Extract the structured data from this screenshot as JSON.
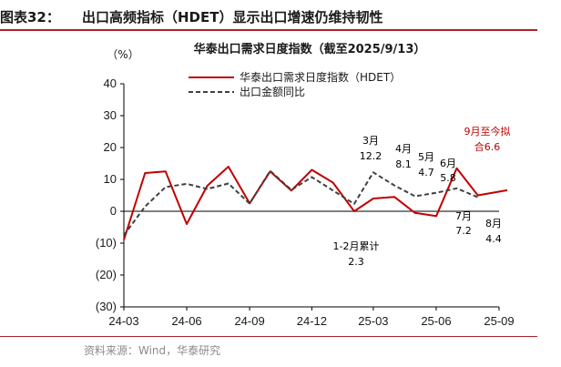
{
  "figure": {
    "label": "图表32：",
    "title": "出口高频指标（HDET）显示出口增速仍维持韧性",
    "source": "资料来源：Wind，华泰研究"
  },
  "colors": {
    "accent": "#b02128",
    "hdet": "#c00000",
    "export": "#404040",
    "axis": "#000000"
  },
  "chart_data": {
    "type": "line",
    "title": "华泰出口需求日度指数（截至2025/9/13）",
    "ylabel": "（%）",
    "ylim": [
      -30,
      40
    ],
    "yticks": [
      40,
      30,
      20,
      10,
      0,
      -10,
      -20,
      -30
    ],
    "ytick_labels": [
      "40",
      "30",
      "20",
      "10",
      "0",
      "(10)",
      "(20)",
      "(30)"
    ],
    "x_start": "2024-03",
    "x_end": "2025-09",
    "xticks": [
      "24-03",
      "24-06",
      "24-09",
      "24-12",
      "25-03",
      "25-06",
      "25-09"
    ],
    "legend_position": "top-center",
    "grid": false,
    "series": [
      {
        "name": "华泰出口需求日度指数（HDET）",
        "style": "solid",
        "x": [
          "2024-03-01",
          "2024-04-01",
          "2024-05-01",
          "2024-06-01",
          "2024-07-01",
          "2024-08-01",
          "2024-09-01",
          "2024-10-01",
          "2024-11-01",
          "2024-12-01",
          "2025-01-01",
          "2025-02-01",
          "2025-03-01",
          "2025-04-01",
          "2025-05-01",
          "2025-06-01",
          "2025-07-01",
          "2025-08-01",
          "2025-09-13"
        ],
        "values": [
          -9,
          12,
          12.5,
          -4,
          8,
          14,
          2.5,
          12.5,
          6.5,
          13,
          9,
          0,
          4,
          4.5,
          -0.5,
          -1.5,
          13.5,
          5,
          6.6
        ]
      },
      {
        "name": "出口金额同比",
        "style": "dashed",
        "x": [
          "2024-03-01",
          "2024-04-01",
          "2024-05-01",
          "2024-06-01",
          "2024-07-01",
          "2024-08-01",
          "2024-09-01",
          "2024-10-01",
          "2024-11-01",
          "2024-12-01",
          "2025-02-01",
          "2025-03-01",
          "2025-04-01",
          "2025-05-01",
          "2025-06-01",
          "2025-07-01",
          "2025-08-01"
        ],
        "values": [
          -7.5,
          1.5,
          7.6,
          8.6,
          7,
          8.7,
          2.4,
          12.7,
          6.7,
          10.7,
          2.3,
          12.2,
          8.1,
          4.7,
          5.8,
          7.2,
          4.4
        ]
      }
    ],
    "annotations": [
      {
        "id": "ann-mar",
        "lines": [
          "3月",
          "12.2"
        ],
        "x": "2025-03-01",
        "value": 12.2,
        "color": "#000000"
      },
      {
        "id": "ann-apr",
        "lines": [
          "4月",
          "8.1"
        ],
        "x": "2025-04-01",
        "value": 8.1,
        "color": "#000000"
      },
      {
        "id": "ann-may",
        "lines": [
          "5月",
          "4.7"
        ],
        "x": "2025-05-01",
        "value": 4.7,
        "color": "#000000"
      },
      {
        "id": "ann-jun",
        "lines": [
          "6月",
          "5.8"
        ],
        "x": "2025-06-01",
        "value": 5.8,
        "color": "#000000"
      },
      {
        "id": "ann-jul",
        "lines": [
          "7月",
          "7.2"
        ],
        "x": "2025-07-01",
        "value": 7.2,
        "color": "#000000"
      },
      {
        "id": "ann-aug",
        "lines": [
          "8月",
          "4.4"
        ],
        "x": "2025-08-01",
        "value": 4.4,
        "color": "#000000"
      },
      {
        "id": "ann-janfeb",
        "lines": [
          "1-2月累计",
          "2.3"
        ],
        "x": "2025-02-01",
        "value": 2.3,
        "color": "#000000"
      },
      {
        "id": "ann-sep",
        "lines": [
          "9月至今拟",
          "合6.6"
        ],
        "x": "2025-09-13",
        "value": 6.6,
        "color": "#c00000"
      }
    ]
  }
}
